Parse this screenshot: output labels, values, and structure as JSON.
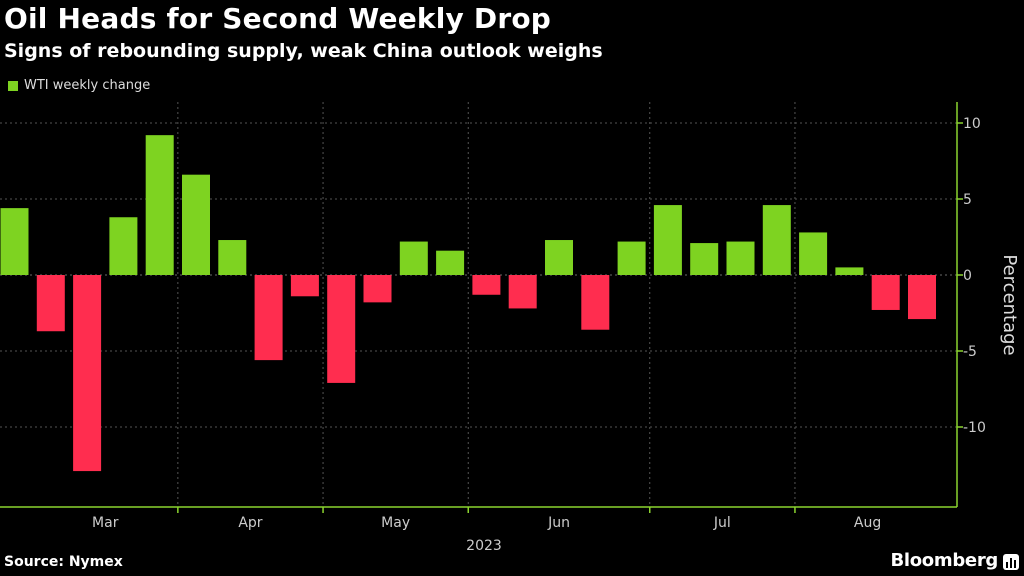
{
  "header": {
    "title": "Oil Heads for Second Weekly Drop",
    "subtitle": "Signs of rebounding supply, weak China outlook weighs"
  },
  "footer": {
    "source": "Source: Nymex",
    "brand": "Bloomberg"
  },
  "colors": {
    "positive": "#7ed321",
    "negative": "#ff2d4f",
    "axis": "#8bd42f",
    "grid": "#555555"
  },
  "chart_data": {
    "type": "bar",
    "title": "Oil Heads for Second Weekly Drop",
    "subtitle": "Signs of rebounding supply, weak China outlook weighs",
    "legend": [
      "WTI weekly change"
    ],
    "legend_position": "top-left",
    "series": [
      {
        "name": "WTI weekly change",
        "values": [
          4.4,
          -3.7,
          -12.9,
          3.8,
          9.2,
          6.6,
          2.3,
          -5.6,
          -1.4,
          -7.1,
          -1.8,
          2.2,
          1.6,
          -1.3,
          -2.2,
          2.3,
          -3.6,
          2.2,
          4.6,
          2.1,
          2.2,
          4.6,
          2.8,
          0.5,
          -2.3,
          -2.9
        ]
      }
    ],
    "xlabel": "2023",
    "ylabel": "Percentage",
    "ylim": [
      -15,
      11
    ],
    "yticks": [
      10,
      5,
      0,
      -5,
      -10
    ],
    "ytick_labels": [
      "10",
      "5",
      "0",
      "-5",
      "-10"
    ],
    "month_labels": [
      {
        "label": "Mar",
        "at_week": 2.5
      },
      {
        "label": "Apr",
        "at_week": 6.5
      },
      {
        "label": "May",
        "at_week": 10.5
      },
      {
        "label": "Jun",
        "at_week": 15.0
      },
      {
        "label": "Jul",
        "at_week": 19.5
      },
      {
        "label": "Aug",
        "at_week": 23.5
      }
    ],
    "month_boundaries": [
      4.5,
      8.5,
      12.5,
      17.5,
      21.5
    ],
    "grid": true
  }
}
